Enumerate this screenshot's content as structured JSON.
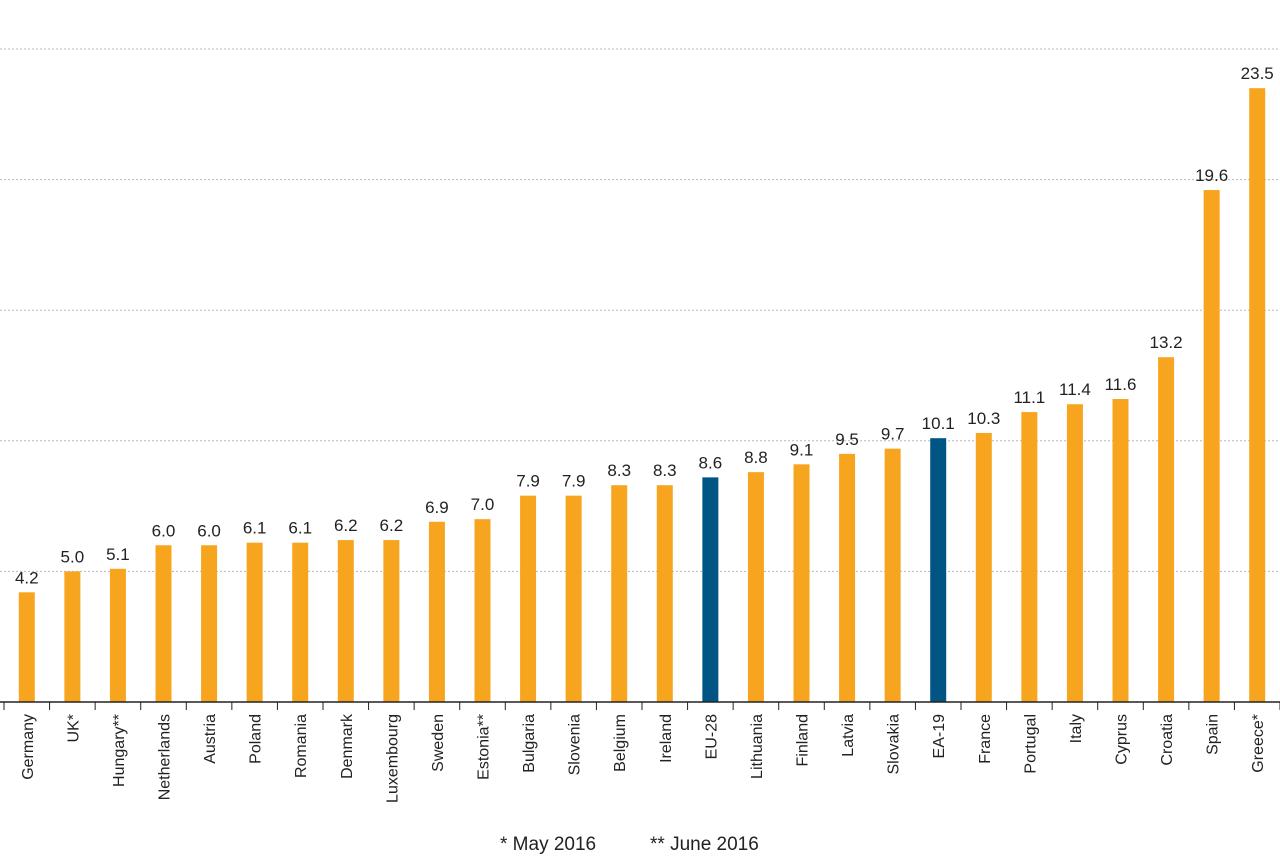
{
  "chart_data": {
    "type": "bar",
    "categories": [
      "Germany",
      "UK*",
      "Hungary**",
      "Netherlands",
      "Austria",
      "Poland",
      "Romania",
      "Denmark",
      "Luxembourg",
      "Sweden",
      "Estonia**",
      "Bulgaria",
      "Slovenia",
      "Belgium",
      "Ireland",
      "EU-28",
      "Lithuania",
      "Finland",
      "Latvia",
      "Slovakia",
      "EA-19",
      "France",
      "Portugal",
      "Italy",
      "Cyprus",
      "Croatia",
      "Spain",
      "Greece*"
    ],
    "values": [
      4.2,
      5.0,
      5.1,
      6.0,
      6.0,
      6.1,
      6.1,
      6.2,
      6.2,
      6.9,
      7.0,
      7.9,
      7.9,
      8.3,
      8.3,
      8.6,
      8.8,
      9.1,
      9.5,
      9.7,
      10.1,
      10.3,
      11.1,
      11.4,
      11.6,
      13.2,
      19.6,
      23.5
    ],
    "value_labels": [
      "4.2",
      "5.0",
      "5.1",
      "6.0",
      "6.0",
      "6.1",
      "6.1",
      "6.2",
      "6.2",
      "6.9",
      "7.0",
      "7.9",
      "7.9",
      "8.3",
      "8.3",
      "8.6",
      "8.8",
      "9.1",
      "9.5",
      "9.7",
      "10.1",
      "10.3",
      "11.1",
      "11.4",
      "11.6",
      "13.2",
      "19.6",
      "23.5"
    ],
    "highlight": [
      "EU-28",
      "EA-19"
    ],
    "ylim": [
      0,
      25
    ],
    "grid": true,
    "gridlines": [
      5,
      10,
      15,
      20,
      25
    ],
    "colors": {
      "bar": "#F7A51E",
      "highlight": "#005584"
    },
    "notes": [
      "*  May  2016",
      "** June  2016"
    ]
  }
}
